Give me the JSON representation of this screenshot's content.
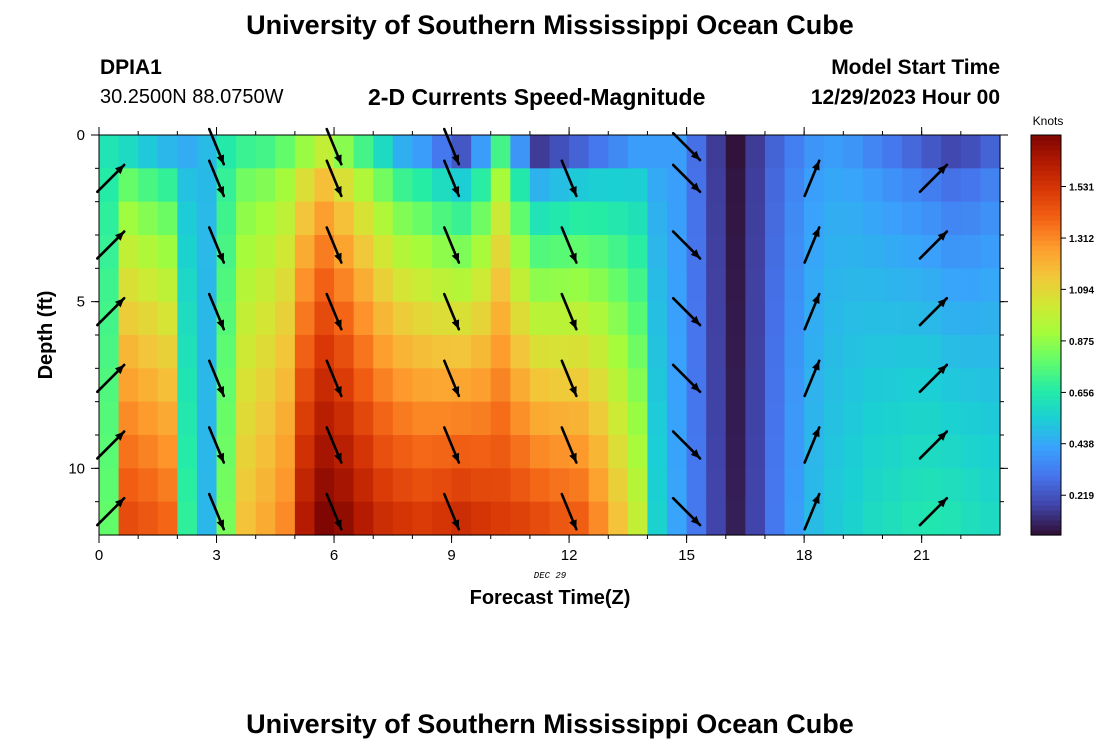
{
  "header": {
    "title": "University of Southern Mississippi Ocean Cube",
    "station": "DPIA1",
    "coords": "30.2500N  88.0750W",
    "subtitle": "2-D Currents Speed-Magnitude",
    "model_start_label": "Model Start Time",
    "model_start_value": "12/29/2023 Hour 00"
  },
  "footer": {
    "title": "University of Southern Mississippi Ocean Cube"
  },
  "chart_data": {
    "type": "heatmap",
    "xlabel": "Forecast Time(Z)",
    "ylabel": "Depth (ft)",
    "date_label": "DEC 29",
    "colorbar_title": "Knots",
    "xlim": [
      0,
      23
    ],
    "ylim": [
      12,
      0
    ],
    "x_ticks": [
      0,
      3,
      6,
      9,
      12,
      15,
      18,
      21
    ],
    "y_ticks": [
      0,
      5,
      10
    ],
    "colorbar_range": [
      0.05,
      1.75
    ],
    "colorbar_ticks": [
      0.219,
      0.438,
      0.656,
      0.875,
      1.094,
      1.312,
      1.531
    ],
    "colorscale": [
      "#30123b",
      "#4145ab",
      "#4675ed",
      "#39a2fc",
      "#1bcfd4",
      "#24eca6",
      "#61fc6c",
      "#a4fc3b",
      "#d1e834",
      "#f3c63a",
      "#fe9b2d",
      "#f36315",
      "#d93806",
      "#b11901",
      "#7a0402"
    ],
    "time_hours": [
      0,
      0.5,
      1,
      1.5,
      2,
      2.5,
      3,
      3.5,
      4,
      4.5,
      5,
      5.5,
      6,
      6.5,
      7,
      7.5,
      8,
      8.5,
      9,
      9.5,
      10,
      10.5,
      11,
      11.5,
      12,
      12.5,
      13,
      13.5,
      14,
      14.5,
      15,
      15.5,
      16,
      16.5,
      17,
      17.5,
      18,
      18.5,
      19,
      19.5,
      20,
      20.5,
      21,
      21.5,
      22,
      22.5
    ],
    "depth_ft": [
      0,
      1,
      2,
      3,
      4,
      5,
      6,
      7,
      8,
      9,
      10,
      11
    ],
    "speed_knots_profiles": [
      {
        "time": 0,
        "surface": 0.62,
        "bottom": 0.78
      },
      {
        "time": 0.5,
        "surface": 0.58,
        "bottom": 1.45
      },
      {
        "time": 1.0,
        "surface": 0.52,
        "bottom": 1.42
      },
      {
        "time": 1.5,
        "surface": 0.47,
        "bottom": 1.38
      },
      {
        "time": 2.0,
        "surface": 0.44,
        "bottom": 0.68
      },
      {
        "time": 2.5,
        "surface": 0.48,
        "bottom": 0.47
      },
      {
        "time": 3.0,
        "surface": 0.65,
        "bottom": 0.82
      },
      {
        "time": 3.5,
        "surface": 0.7,
        "bottom": 1.15
      },
      {
        "time": 4.0,
        "surface": 0.72,
        "bottom": 1.22
      },
      {
        "time": 4.5,
        "surface": 0.78,
        "bottom": 1.3
      },
      {
        "time": 5.0,
        "surface": 0.88,
        "bottom": 1.62
      },
      {
        "time": 5.5,
        "surface": 0.98,
        "bottom": 1.74
      },
      {
        "time": 6.0,
        "surface": 0.85,
        "bottom": 1.7
      },
      {
        "time": 6.5,
        "surface": 0.72,
        "bottom": 1.62
      },
      {
        "time": 7.0,
        "surface": 0.58,
        "bottom": 1.55
      },
      {
        "time": 7.5,
        "surface": 0.45,
        "bottom": 1.52
      },
      {
        "time": 8.0,
        "surface": 0.4,
        "bottom": 1.5
      },
      {
        "time": 8.5,
        "surface": 0.3,
        "bottom": 1.52
      },
      {
        "time": 9.0,
        "surface": 0.22,
        "bottom": 1.55
      },
      {
        "time": 9.5,
        "surface": 0.4,
        "bottom": 1.52
      },
      {
        "time": 10.0,
        "surface": 0.72,
        "bottom": 1.5
      },
      {
        "time": 10.5,
        "surface": 0.38,
        "bottom": 1.48
      },
      {
        "time": 11.0,
        "surface": 0.15,
        "bottom": 1.45
      },
      {
        "time": 11.5,
        "surface": 0.2,
        "bottom": 1.42
      },
      {
        "time": 12.0,
        "surface": 0.25,
        "bottom": 1.4
      },
      {
        "time": 12.5,
        "surface": 0.3,
        "bottom": 1.3
      },
      {
        "time": 13.0,
        "surface": 0.35,
        "bottom": 1.15
      },
      {
        "time": 13.5,
        "surface": 0.4,
        "bottom": 0.98
      },
      {
        "time": 14.0,
        "surface": 0.4,
        "bottom": 0.55
      },
      {
        "time": 14.5,
        "surface": 0.4,
        "bottom": 0.42
      },
      {
        "time": 15.0,
        "surface": 0.28,
        "bottom": 0.3
      },
      {
        "time": 15.5,
        "surface": 0.15,
        "bottom": 0.17
      },
      {
        "time": 16.0,
        "surface": 0.05,
        "bottom": 0.08
      },
      {
        "time": 16.5,
        "surface": 0.15,
        "bottom": 0.17
      },
      {
        "time": 17.0,
        "surface": 0.25,
        "bottom": 0.3
      },
      {
        "time": 17.5,
        "surface": 0.32,
        "bottom": 0.4
      },
      {
        "time": 18.0,
        "surface": 0.38,
        "bottom": 0.48
      },
      {
        "time": 18.5,
        "surface": 0.4,
        "bottom": 0.52
      },
      {
        "time": 19.0,
        "surface": 0.38,
        "bottom": 0.55
      },
      {
        "time": 19.5,
        "surface": 0.34,
        "bottom": 0.58
      },
      {
        "time": 20.0,
        "surface": 0.3,
        "bottom": 0.6
      },
      {
        "time": 20.5,
        "surface": 0.26,
        "bottom": 0.62
      },
      {
        "time": 21.0,
        "surface": 0.22,
        "bottom": 0.63
      },
      {
        "time": 21.5,
        "surface": 0.18,
        "bottom": 0.62
      },
      {
        "time": 22.0,
        "surface": 0.2,
        "bottom": 0.6
      },
      {
        "time": 22.5,
        "surface": 0.25,
        "bottom": 0.58
      }
    ],
    "direction_vectors": {
      "depths_ft": [
        1.3,
        3.3,
        5.3,
        7.3,
        9.3,
        11.3
      ],
      "columns": [
        {
          "time": 0.3,
          "dir": "NE"
        },
        {
          "time": 3.0,
          "dir": "SSE"
        },
        {
          "time": 6.0,
          "dir": "SSE"
        },
        {
          "time": 9.0,
          "dir": "SSE"
        },
        {
          "time": 12.0,
          "dir": "SSE"
        },
        {
          "time": 15.0,
          "dir": "SE"
        },
        {
          "time": 18.2,
          "dir": "NNE"
        },
        {
          "time": 21.3,
          "dir": "NE"
        }
      ],
      "surface_arrows_at_0ft": [
        3,
        6,
        9,
        15
      ]
    }
  }
}
